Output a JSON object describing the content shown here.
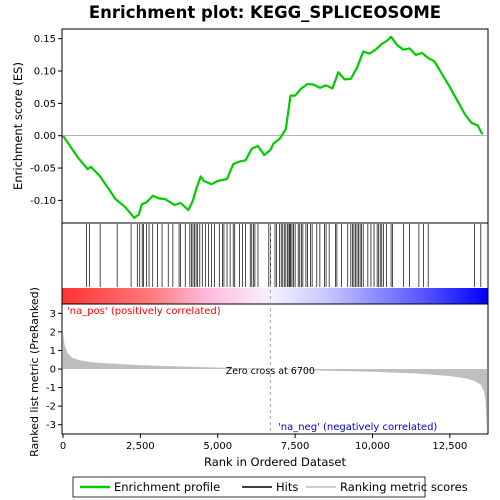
{
  "chart_data": {
    "type": "line",
    "title": "Enrichment plot: KEGG_SPLICEOSOME",
    "xlabel": "Rank in Ordered Dataset",
    "x_ticks": [
      0,
      2500,
      5000,
      7500,
      10000,
      12500
    ],
    "x_tick_labels": [
      "0",
      "2,500",
      "5,000",
      "7,500",
      "10,000",
      "12,500"
    ],
    "xlim": [
      0,
      14000
    ],
    "es_panel": {
      "ylabel": "Enrichment score (ES)",
      "ylim": [
        -0.135,
        0.165
      ],
      "y_ticks": [
        -0.1,
        -0.05,
        0.0,
        0.05,
        0.1,
        0.15
      ],
      "y_tick_labels": [
        "-0.10",
        "-0.05",
        "0.00",
        "0.05",
        "0.10",
        "0.15"
      ],
      "line_color": "#00cc00",
      "series": [
        {
          "name": "Enrichment profile",
          "x": [
            0,
            500,
            800,
            900,
            1200,
            1700,
            2000,
            2300,
            2450,
            2550,
            2700,
            2900,
            3100,
            3300,
            3600,
            3800,
            4050,
            4200,
            4300,
            4450,
            4550,
            4800,
            5000,
            5300,
            5500,
            5700,
            5900,
            6100,
            6300,
            6500,
            6700,
            6800,
            7000,
            7200,
            7350,
            7500,
            7700,
            7900,
            8100,
            8300,
            8500,
            8700,
            8900,
            9100,
            9300,
            9500,
            9700,
            9900,
            10100,
            10300,
            10500,
            10600,
            10800,
            11000,
            11200,
            11400,
            11600,
            11800,
            12000,
            12500,
            13000,
            13200,
            13400,
            13550
          ],
          "y": [
            0.0,
            -0.035,
            -0.052,
            -0.048,
            -0.063,
            -0.098,
            -0.11,
            -0.127,
            -0.122,
            -0.106,
            -0.103,
            -0.093,
            -0.097,
            -0.098,
            -0.107,
            -0.104,
            -0.115,
            -0.1,
            -0.083,
            -0.063,
            -0.07,
            -0.075,
            -0.07,
            -0.067,
            -0.044,
            -0.04,
            -0.038,
            -0.02,
            -0.016,
            -0.03,
            -0.022,
            -0.012,
            -0.005,
            0.01,
            0.062,
            0.062,
            0.073,
            0.08,
            0.079,
            0.074,
            0.078,
            0.073,
            0.098,
            0.087,
            0.088,
            0.105,
            0.13,
            0.127,
            0.133,
            0.142,
            0.148,
            0.153,
            0.14,
            0.133,
            0.135,
            0.125,
            0.128,
            0.12,
            0.115,
            0.075,
            0.032,
            0.02,
            0.016,
            0.002
          ]
        }
      ]
    },
    "hits_panel": {
      "name": "Hits",
      "hit_ranks": [
        760,
        850,
        1200,
        1750,
        2200,
        2400,
        2480,
        2560,
        2600,
        2700,
        2780,
        2900,
        3050,
        3200,
        3400,
        3550,
        3750,
        3800,
        3950,
        4100,
        4150,
        4200,
        4250,
        4300,
        4350,
        4420,
        4500,
        4600,
        4700,
        4800,
        4900,
        5050,
        5150,
        5200,
        5300,
        5400,
        5500,
        5550,
        5700,
        5800,
        5900,
        6050,
        6100,
        6150,
        6200,
        6300,
        6650,
        6700,
        6850,
        6900,
        7000,
        7050,
        7100,
        7150,
        7200,
        7250,
        7300,
        7330,
        7360,
        7400,
        7450,
        7500,
        7600,
        7650,
        7700,
        7750,
        7850,
        7900,
        8000,
        8050,
        8200,
        8300,
        8450,
        8500,
        8600,
        8800,
        8850,
        9000,
        9200,
        9300,
        9350,
        9400,
        9450,
        9500,
        9550,
        9600,
        9650,
        9700,
        9850,
        9950,
        10050,
        10150,
        10200,
        10250,
        10300,
        10350,
        10450,
        10600,
        10650,
        11000,
        11200,
        11500,
        11650,
        11800,
        13300,
        13500
      ]
    },
    "metric_panel": {
      "ylabel": "Ranked list metric (PreRanked)",
      "ylim": [
        -3.5,
        3.5
      ],
      "y_ticks": [
        3,
        2,
        1,
        0,
        -1,
        -2,
        -3
      ],
      "y_tick_labels": [
        "3",
        "2",
        "1",
        "0",
        "-1",
        "-2",
        "-3"
      ],
      "fill_color": "#bebebe",
      "x": [
        0,
        50,
        150,
        300,
        600,
        1000,
        2000,
        3000,
        4500,
        6700,
        8500,
        10000,
        11500,
        12500,
        13000,
        13300,
        13500,
        13600,
        13650,
        13700
      ],
      "y": [
        2.0,
        1.3,
        0.85,
        0.6,
        0.45,
        0.35,
        0.25,
        0.18,
        0.1,
        0.0,
        -0.09,
        -0.15,
        -0.25,
        -0.38,
        -0.5,
        -0.65,
        -0.85,
        -1.2,
        -1.7,
        -3.4
      ],
      "zero_cross_label": "Zero cross at 6700",
      "zero_cross_rank": 6700,
      "pos_label": "'na_pos' (positively correlated)",
      "neg_label": "'na_neg' (negatively correlated)",
      "pos_label_color": "#ff0000",
      "neg_label_color": "#0000cc"
    },
    "legend": {
      "placement": "bottom",
      "entries": [
        {
          "label": "Enrichment profile",
          "color": "#00cc00"
        },
        {
          "label": "Hits",
          "color": "#000000"
        },
        {
          "label": "Ranking metric scores",
          "color": "#bebebe"
        }
      ]
    },
    "colors": {
      "gradient_pos": "#ff0000",
      "gradient_neutral": "#ffffff",
      "gradient_neg": "#0000ff"
    }
  }
}
